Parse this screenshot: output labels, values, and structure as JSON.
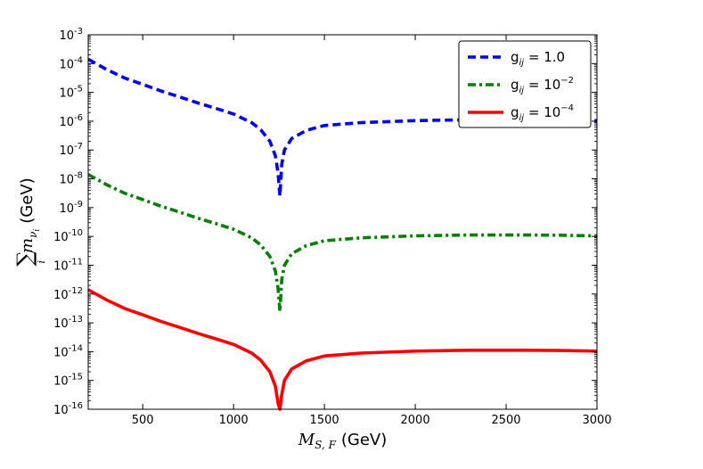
{
  "chart_data": {
    "type": "line",
    "title": "",
    "xlabel": "M_{S,F} (GeV)",
    "ylabel": "Σ_i m_{ν_i} (GeV)",
    "xlim": [
      200,
      3000
    ],
    "ylim_log10": [
      -16,
      -3
    ],
    "yscale": "log",
    "x_ticks": [
      500,
      1000,
      1500,
      2000,
      2500,
      3000
    ],
    "y_tick_exponents": [
      -16,
      -15,
      -14,
      -13,
      -12,
      -11,
      -10,
      -9,
      -8,
      -7,
      -6,
      -5,
      -4,
      -3
    ],
    "legend_position": "top-right",
    "dip_x": 1255,
    "series": [
      {
        "name": "g_ij = 1.0",
        "color": "#0000ff",
        "style": "dashed",
        "x": [
          200,
          300,
          400,
          500,
          600,
          700,
          800,
          900,
          1000,
          1100,
          1150,
          1200,
          1230,
          1245,
          1255,
          1265,
          1280,
          1320,
          1400,
          1500,
          1700,
          2000,
          2300,
          2600,
          2800,
          3000
        ],
        "log10": [
          -3.85,
          -4.2,
          -4.5,
          -4.72,
          -4.95,
          -5.15,
          -5.36,
          -5.55,
          -5.75,
          -6.05,
          -6.3,
          -6.7,
          -7.2,
          -7.8,
          -8.6,
          -7.5,
          -7.0,
          -6.6,
          -6.32,
          -6.15,
          -6.05,
          -5.98,
          -5.95,
          -5.95,
          -5.96,
          -5.98
        ]
      },
      {
        "name": "g_ij = 10^{-2}",
        "color": "#008000",
        "style": "dashdot",
        "x": [
          200,
          300,
          400,
          500,
          600,
          700,
          800,
          900,
          1000,
          1100,
          1150,
          1200,
          1230,
          1245,
          1255,
          1265,
          1280,
          1320,
          1400,
          1500,
          1700,
          2000,
          2300,
          2600,
          2800,
          3000
        ],
        "log10": [
          -7.85,
          -8.2,
          -8.5,
          -8.72,
          -8.95,
          -9.15,
          -9.36,
          -9.55,
          -9.75,
          -10.05,
          -10.3,
          -10.7,
          -11.2,
          -11.8,
          -12.6,
          -11.5,
          -11.0,
          -10.6,
          -10.32,
          -10.15,
          -10.05,
          -9.98,
          -9.95,
          -9.95,
          -9.96,
          -9.98
        ]
      },
      {
        "name": "g_ij = 10^{-4}",
        "color": "#ff0000",
        "style": "solid",
        "x": [
          200,
          300,
          400,
          500,
          600,
          700,
          800,
          900,
          1000,
          1100,
          1150,
          1200,
          1230,
          1245,
          1255,
          1265,
          1280,
          1320,
          1400,
          1500,
          1700,
          2000,
          2300,
          2600,
          2800,
          3000
        ],
        "log10": [
          -11.85,
          -12.2,
          -12.5,
          -12.72,
          -12.95,
          -13.15,
          -13.36,
          -13.55,
          -13.75,
          -14.05,
          -14.3,
          -14.7,
          -15.2,
          -15.8,
          -16.0,
          -15.5,
          -15.0,
          -14.6,
          -14.32,
          -14.15,
          -14.05,
          -13.98,
          -13.95,
          -13.95,
          -13.96,
          -13.98
        ]
      }
    ]
  },
  "labels": {
    "x_main": "M",
    "x_sub": "S, F",
    "x_unit": "(GeV)",
    "y_sigma": "∑",
    "y_index": "i",
    "y_m": "m",
    "y_nu": "ν",
    "y_nu_sub": "i",
    "y_unit": "(GeV)",
    "tick_base": "10"
  },
  "legend": [
    {
      "g": "g",
      "sub": "ij",
      "eq": " = ",
      "value": "1.0",
      "exp": ""
    },
    {
      "g": "g",
      "sub": "ij",
      "eq": " = ",
      "value": "10",
      "exp": "−2"
    },
    {
      "g": "g",
      "sub": "ij",
      "eq": " = ",
      "value": "10",
      "exp": "−4"
    }
  ]
}
